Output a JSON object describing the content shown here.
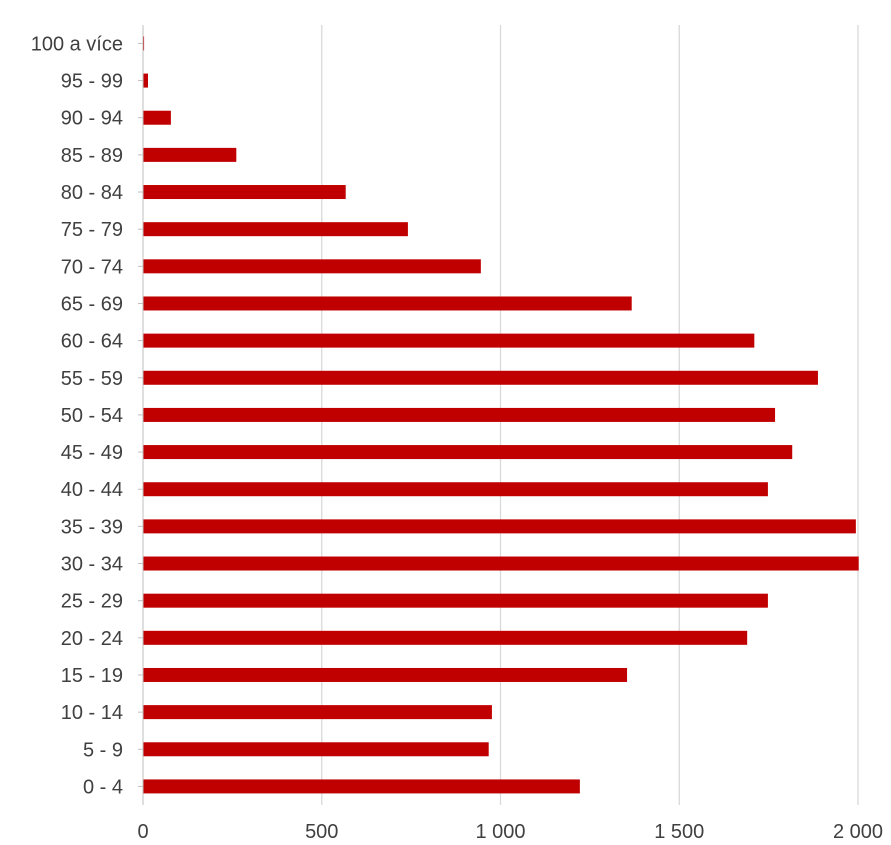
{
  "chart_data": {
    "type": "bar",
    "orientation": "horizontal",
    "title": "",
    "xlabel": "",
    "ylabel": "",
    "categories": [
      "0 - 4",
      "5 - 9",
      "10 - 14",
      "15 - 19",
      "20 - 24",
      "25 - 29",
      "30 - 34",
      "35 - 39",
      "40 - 44",
      "45 - 49",
      "50 - 54",
      "55 - 59",
      "60 - 64",
      "65 - 69",
      "70 - 74",
      "75 - 79",
      "80 - 84",
      "85 - 89",
      "90 - 94",
      "95 - 99",
      "100 a více"
    ],
    "values": [
      1222,
      967,
      976,
      1354,
      1690,
      1748,
      2002,
      1994,
      1748,
      1816,
      1768,
      1888,
      1710,
      1367,
      945,
      741,
      567,
      261,
      78,
      14,
      3
    ],
    "xlim": [
      0,
      2000
    ],
    "x_ticks": [
      {
        "value": 0,
        "label": "0"
      },
      {
        "value": 500,
        "label": "500"
      },
      {
        "value": 1000,
        "label": "1 000"
      },
      {
        "value": 1500,
        "label": "1 500"
      },
      {
        "value": 2000,
        "label": "2 000"
      }
    ],
    "grid": "vertical",
    "legend": "none",
    "colors": {
      "bar": "#c00000",
      "grid": "#d9d9d9",
      "axis": "#bfbfbf",
      "text": "#404040"
    }
  }
}
